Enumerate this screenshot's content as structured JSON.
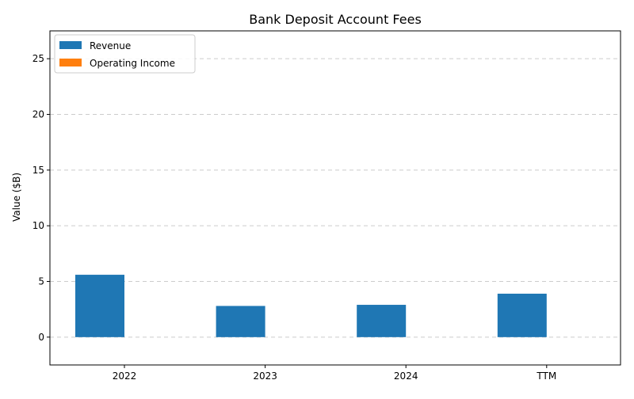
{
  "chart_data": {
    "type": "bar",
    "title": "Bank Deposit Account Fees",
    "xlabel": "",
    "ylabel": "Value ($B)",
    "categories": [
      "2022",
      "2023",
      "2024",
      "TTM"
    ],
    "series": [
      {
        "name": "Revenue",
        "color": "#1f77b4",
        "values": [
          5.6,
          2.8,
          2.9,
          3.9
        ]
      },
      {
        "name": "Operating Income",
        "color": "#ff7f0e",
        "values": [
          0,
          0,
          0,
          0
        ]
      }
    ],
    "ylim": [
      -2.5,
      27.5
    ],
    "yticks": [
      0,
      5,
      10,
      15,
      20,
      25
    ],
    "grid": "y-dashed",
    "legend_position": "top-left"
  }
}
